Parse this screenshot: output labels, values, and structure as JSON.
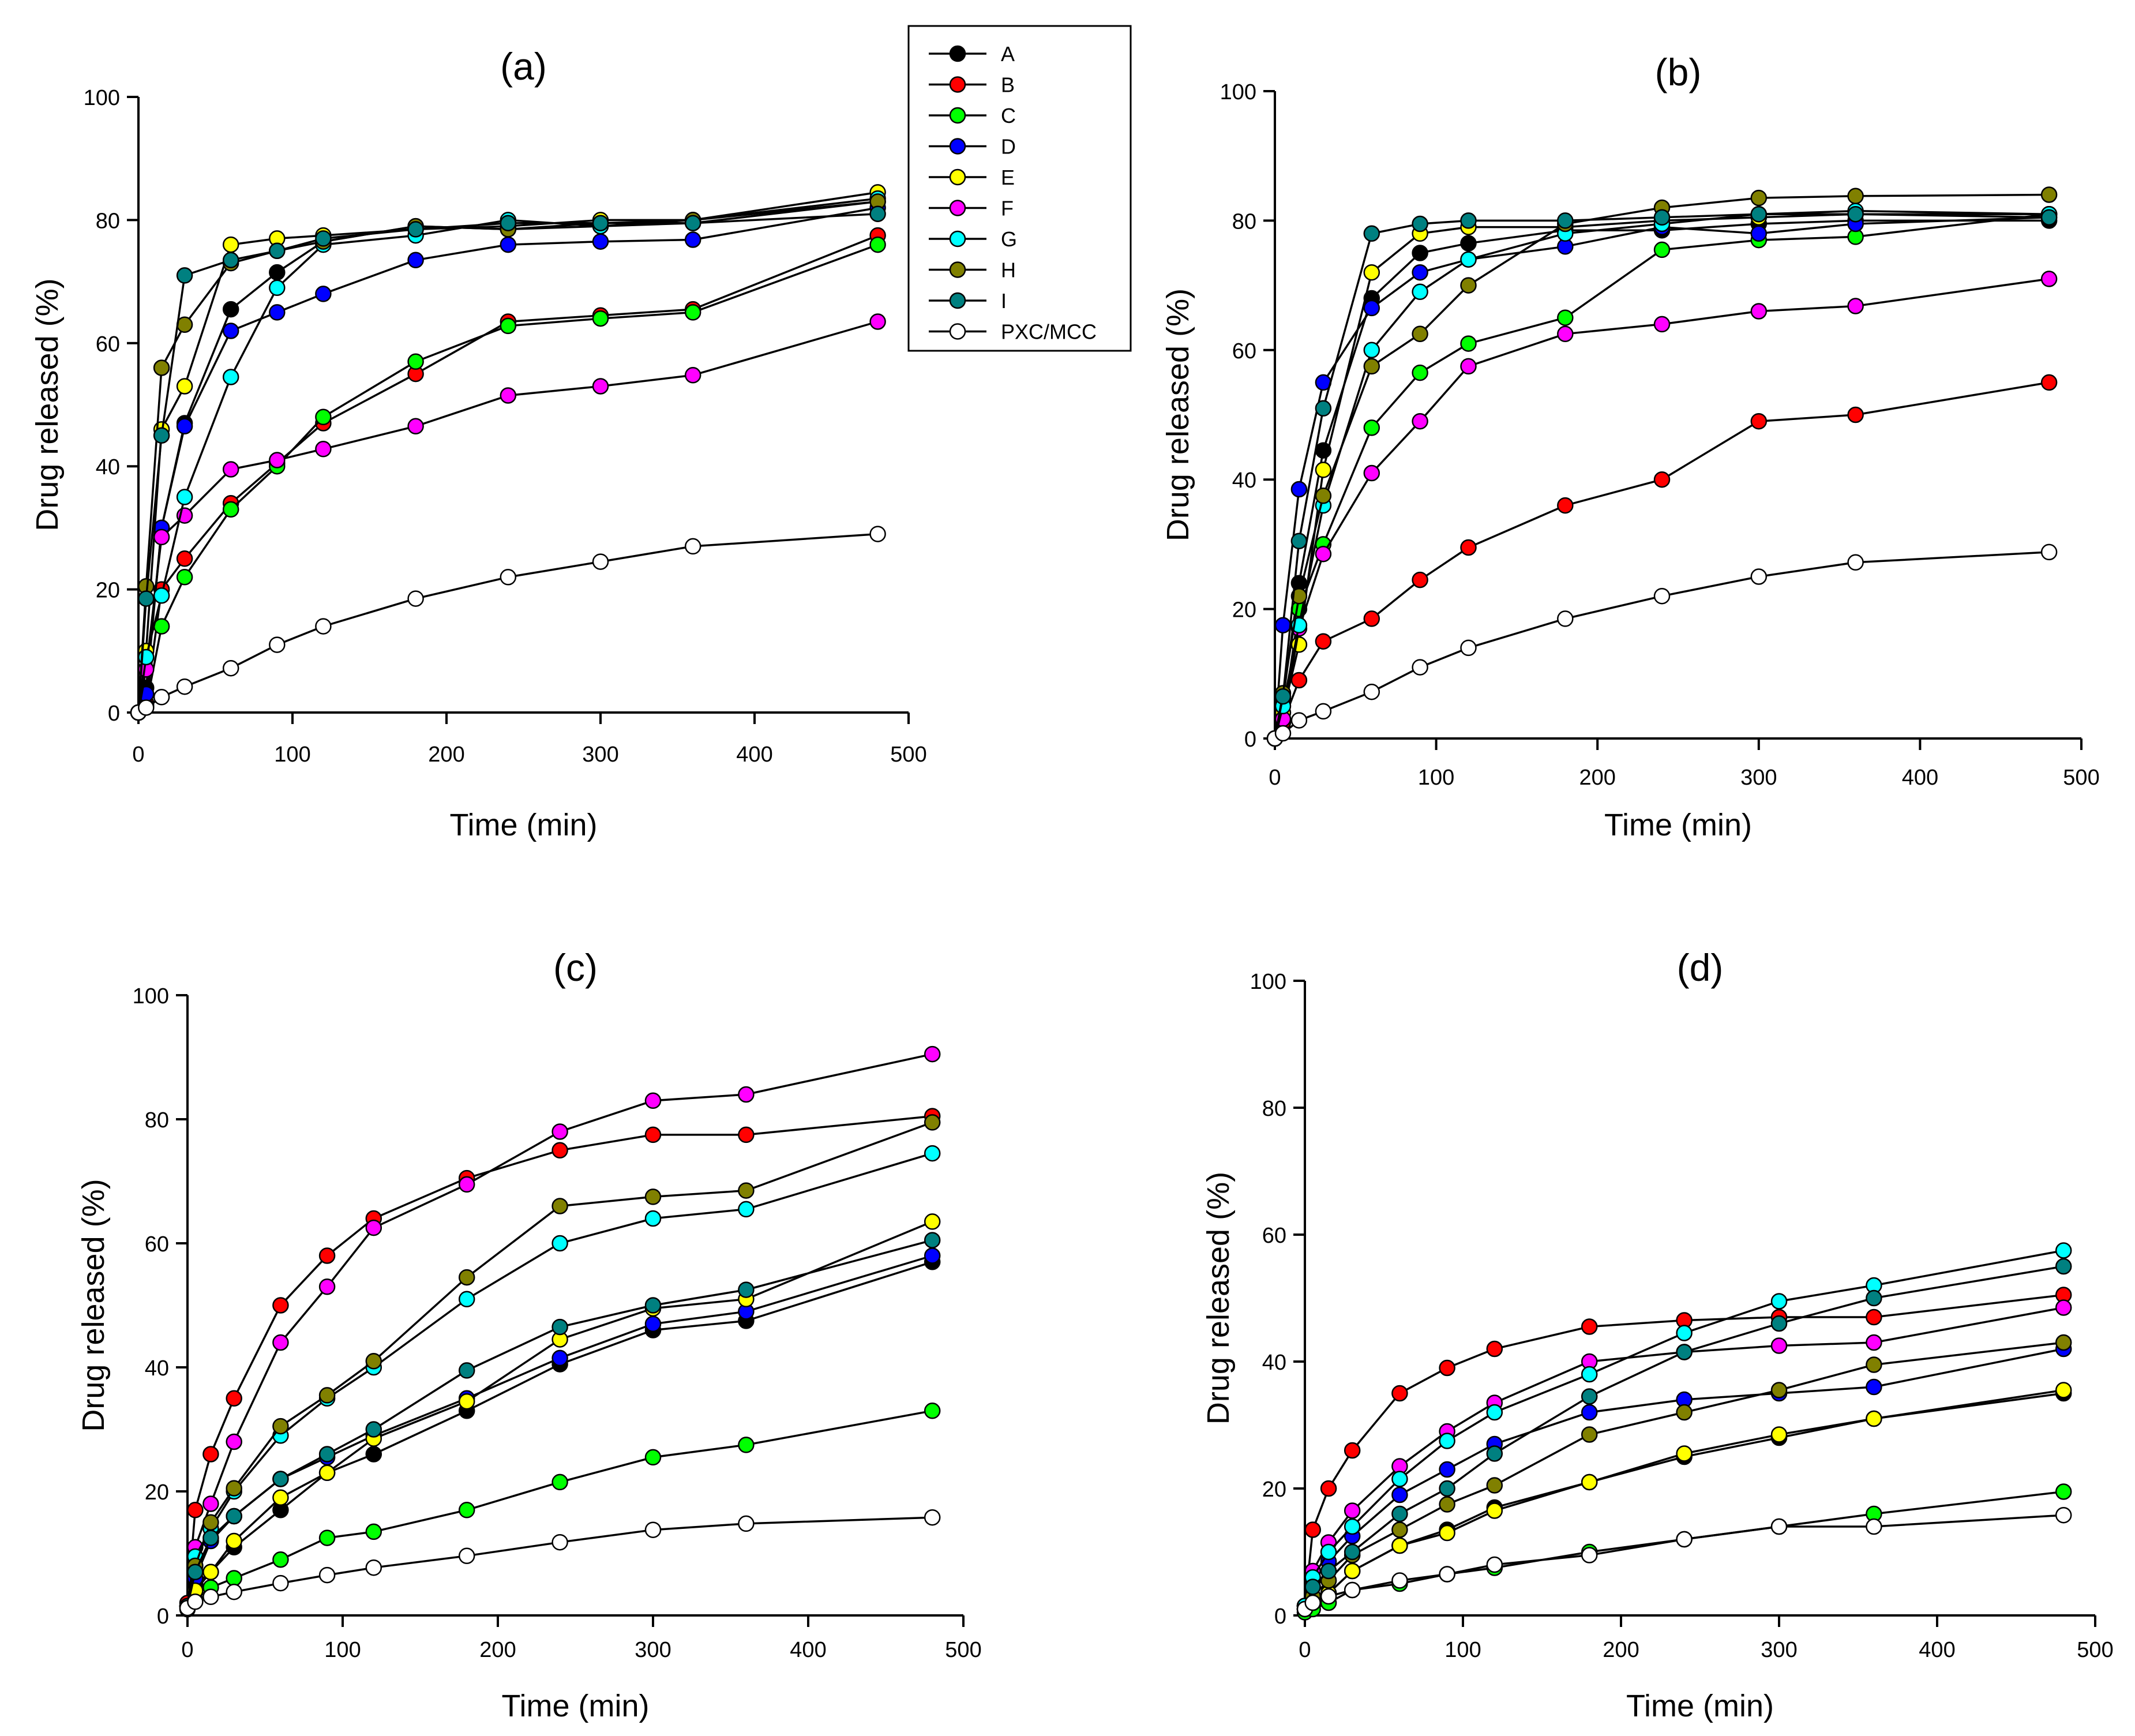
{
  "legend": {
    "entries": [
      {
        "name": "A",
        "color": "#000000"
      },
      {
        "name": "B",
        "color": "#ff0000"
      },
      {
        "name": "C",
        "color": "#00ff00"
      },
      {
        "name": "D",
        "color": "#0000ff"
      },
      {
        "name": "E",
        "color": "#ffff00"
      },
      {
        "name": "F",
        "color": "#ff00ff"
      },
      {
        "name": "G",
        "color": "#00ffff"
      },
      {
        "name": "H",
        "color": "#808000"
      },
      {
        "name": "I",
        "color": "#008080"
      },
      {
        "name": "PXC/MCC",
        "color": "#ffffff"
      }
    ]
  },
  "chart_data": [
    {
      "type": "line",
      "title": "(a)",
      "xlabel": "Time (min)",
      "ylabel": "Drug released (%)",
      "xlim": [
        0,
        500
      ],
      "ylim": [
        0,
        100
      ],
      "xticks": [
        "0",
        "100",
        "200",
        "300",
        "400",
        "500"
      ],
      "yticks": [
        "0",
        "20",
        "40",
        "60",
        "80",
        "100"
      ],
      "x": [
        0,
        5,
        15,
        30,
        60,
        90,
        120,
        180,
        240,
        300,
        360,
        480
      ],
      "series": [
        {
          "name": "A",
          "values": [
            0,
            4,
            30,
            47,
            65.5,
            71.5,
            76.5,
            79,
            78.5,
            79,
            79.5,
            83
          ]
        },
        {
          "name": "B",
          "values": [
            0,
            1.5,
            20,
            25,
            34,
            40.5,
            47,
            55,
            63.5,
            64.5,
            65.5,
            77.5
          ]
        },
        {
          "name": "C",
          "values": [
            0,
            1,
            14,
            22,
            33,
            40,
            48,
            57,
            62.8,
            64,
            65,
            76
          ]
        },
        {
          "name": "D",
          "values": [
            0,
            3,
            30,
            46.5,
            62,
            65,
            68,
            73.5,
            76,
            76.5,
            76.8,
            82
          ]
        },
        {
          "name": "E",
          "values": [
            0,
            10,
            46,
            53,
            76,
            77,
            77.5,
            78.5,
            79,
            80,
            80,
            84.5
          ]
        },
        {
          "name": "F",
          "values": [
            0,
            7,
            28.5,
            32,
            39.5,
            41,
            42.8,
            46.5,
            51.5,
            53,
            54.8,
            63.5
          ]
        },
        {
          "name": "G",
          "values": [
            0,
            9,
            19,
            35,
            54.5,
            69,
            76,
            77.5,
            80,
            79,
            80,
            83.5
          ]
        },
        {
          "name": "H",
          "values": [
            0,
            20.5,
            56,
            63,
            73,
            75,
            76.5,
            79,
            78.5,
            79.5,
            80,
            83
          ]
        },
        {
          "name": "I",
          "values": [
            0,
            18.5,
            45,
            71,
            73.5,
            75,
            77,
            78.5,
            79.5,
            79.5,
            79.5,
            81
          ]
        },
        {
          "name": "PXC/MCC",
          "values": [
            0,
            0.8,
            2.5,
            4.2,
            7.2,
            11,
            14,
            18.5,
            22,
            24.5,
            27,
            29
          ]
        }
      ]
    },
    {
      "type": "line",
      "title": "(b)",
      "xlabel": "Time (min)",
      "ylabel": "Drug released (%)",
      "xlim": [
        0,
        500
      ],
      "ylim": [
        0,
        100
      ],
      "xticks": [
        "0",
        "100",
        "200",
        "300",
        "400",
        "500"
      ],
      "yticks": [
        "0",
        "20",
        "40",
        "60",
        "80",
        "100"
      ],
      "x": [
        0,
        5,
        15,
        30,
        60,
        90,
        120,
        180,
        240,
        300,
        360,
        480
      ],
      "series": [
        {
          "name": "A",
          "values": [
            0,
            6,
            24,
            44.5,
            68,
            75,
            76.5,
            78.5,
            78.5,
            79.5,
            80,
            80
          ]
        },
        {
          "name": "B",
          "values": [
            0,
            2.5,
            9,
            15,
            18.5,
            24.5,
            29.5,
            36,
            40,
            49,
            50,
            55
          ]
        },
        {
          "name": "C",
          "values": [
            0,
            3,
            20,
            30,
            48,
            56.5,
            61,
            65,
            75.5,
            77,
            77.5,
            81
          ]
        },
        {
          "name": "D",
          "values": [
            0,
            17.5,
            38.5,
            55,
            66.5,
            72,
            74,
            76,
            79,
            78,
            79.5,
            80.5
          ]
        },
        {
          "name": "E",
          "values": [
            0,
            4,
            14.5,
            41.5,
            72,
            78,
            79,
            79,
            80,
            80.5,
            81,
            81
          ]
        },
        {
          "name": "F",
          "values": [
            0,
            3,
            17,
            28.5,
            41,
            49,
            57.5,
            62.5,
            64,
            66,
            66.8,
            71
          ]
        },
        {
          "name": "G",
          "values": [
            0,
            5,
            17.5,
            36,
            60,
            69,
            74,
            78,
            79.5,
            81,
            81.5,
            81
          ]
        },
        {
          "name": "H",
          "values": [
            0,
            7,
            22,
            37.5,
            57.5,
            62.5,
            70,
            79.5,
            82,
            83.5,
            83.8,
            84
          ]
        },
        {
          "name": "I",
          "values": [
            0,
            6.5,
            30.5,
            51,
            78,
            79.5,
            80,
            80,
            80.5,
            81,
            81,
            80.5
          ]
        },
        {
          "name": "PXC/MCC",
          "values": [
            0,
            0.8,
            2.8,
            4.2,
            7.2,
            11,
            14,
            18.5,
            22,
            25,
            27.2,
            28.8
          ]
        }
      ]
    },
    {
      "type": "line",
      "title": "(c)",
      "xlabel": "Time (min)",
      "ylabel": "Drug released (%)",
      "xlim": [
        0,
        500
      ],
      "ylim": [
        0,
        100
      ],
      "xticks": [
        "0",
        "100",
        "200",
        "300",
        "400",
        "500"
      ],
      "yticks": [
        "0",
        "20",
        "40",
        "60",
        "80",
        "100"
      ],
      "x": [
        0,
        5,
        15,
        30,
        60,
        90,
        120,
        180,
        240,
        300,
        360,
        480
      ],
      "series": [
        {
          "name": "A",
          "values": [
            1.5,
            5,
            7,
            11,
            17,
            23,
            26,
            33,
            40.5,
            46,
            47.5,
            57
          ]
        },
        {
          "name": "B",
          "values": [
            2,
            17,
            26,
            35,
            50,
            58,
            64,
            70.5,
            75,
            77.5,
            77.5,
            80.5
          ]
        },
        {
          "name": "C",
          "values": [
            1,
            2.5,
            4.5,
            6,
            9,
            12.5,
            13.5,
            17,
            21.5,
            25.5,
            27.5,
            33
          ]
        },
        {
          "name": "D",
          "values": [
            1.5,
            6,
            12,
            16,
            22,
            25.5,
            29,
            35,
            41.5,
            47,
            49,
            58
          ]
        },
        {
          "name": "E",
          "values": [
            1.5,
            4,
            7,
            12,
            19,
            23,
            28.5,
            34.5,
            44.5,
            49.5,
            51,
            63.5
          ]
        },
        {
          "name": "F",
          "values": [
            1.5,
            11,
            18,
            28,
            44,
            53,
            62.5,
            69.5,
            78,
            83,
            84,
            90.5
          ]
        },
        {
          "name": "G",
          "values": [
            1.5,
            9.5,
            14,
            20,
            29,
            35,
            40,
            51,
            60,
            64,
            65.5,
            74.5
          ]
        },
        {
          "name": "H",
          "values": [
            1.5,
            8,
            15,
            20.5,
            30.5,
            35.5,
            41,
            54.5,
            66,
            67.5,
            68.5,
            79.5
          ]
        },
        {
          "name": "I",
          "values": [
            1.5,
            7,
            12.5,
            16,
            22,
            26,
            30,
            39.5,
            46.5,
            50,
            52.5,
            60.5
          ]
        },
        {
          "name": "PXC/MCC",
          "values": [
            1.2,
            2.2,
            3,
            3.8,
            5.2,
            6.5,
            7.7,
            9.6,
            11.8,
            13.8,
            14.8,
            15.8
          ]
        }
      ]
    },
    {
      "type": "line",
      "title": "(d)",
      "xlabel": "Time (min)",
      "ylabel": "Drug released (%)",
      "xlim": [
        0,
        500
      ],
      "ylim": [
        0,
        100
      ],
      "xticks": [
        "0",
        "100",
        "200",
        "300",
        "400",
        "500"
      ],
      "yticks": [
        "0",
        "20",
        "40",
        "60",
        "80",
        "100"
      ],
      "x": [
        0,
        5,
        15,
        30,
        60,
        90,
        120,
        180,
        240,
        300,
        360,
        480
      ],
      "series": [
        {
          "name": "A",
          "values": [
            1,
            2,
            3.5,
            7,
            11,
            13.5,
            17,
            21,
            25,
            28,
            31,
            35
          ]
        },
        {
          "name": "B",
          "values": [
            1.5,
            13.5,
            20,
            26,
            35,
            39,
            42,
            45.5,
            46.5,
            47,
            47,
            50.5
          ]
        },
        {
          "name": "C",
          "values": [
            0.5,
            1,
            2,
            4,
            5,
            6.5,
            7.5,
            10,
            12,
            14,
            16,
            19.5
          ]
        },
        {
          "name": "D",
          "values": [
            1.5,
            5.5,
            8.5,
            12.5,
            19,
            23,
            27,
            32,
            34,
            35,
            36,
            42
          ]
        },
        {
          "name": "E",
          "values": [
            1,
            2,
            3.5,
            7,
            11,
            13,
            16.5,
            21,
            25.5,
            28.5,
            31,
            35.5
          ]
        },
        {
          "name": "F",
          "values": [
            1.5,
            7,
            11.5,
            16.5,
            23.5,
            29,
            33.5,
            40,
            41.5,
            42.5,
            43,
            48.5
          ]
        },
        {
          "name": "G",
          "values": [
            1.5,
            6,
            10,
            14,
            21.5,
            27.5,
            32,
            38,
            44.5,
            49.5,
            52,
            57.5
          ]
        },
        {
          "name": "H",
          "values": [
            1,
            3,
            5.5,
            9.5,
            13.5,
            17.5,
            20.5,
            28.5,
            32,
            35.5,
            39.5,
            43
          ]
        },
        {
          "name": "I",
          "values": [
            1,
            4.5,
            7,
            10,
            16,
            20,
            25.5,
            34.5,
            41.5,
            46,
            50,
            55
          ]
        },
        {
          "name": "PXC/MCC",
          "values": [
            1,
            2,
            3,
            4,
            5.5,
            6.5,
            8,
            9.5,
            12,
            14,
            14,
            15.8
          ]
        }
      ]
    }
  ]
}
